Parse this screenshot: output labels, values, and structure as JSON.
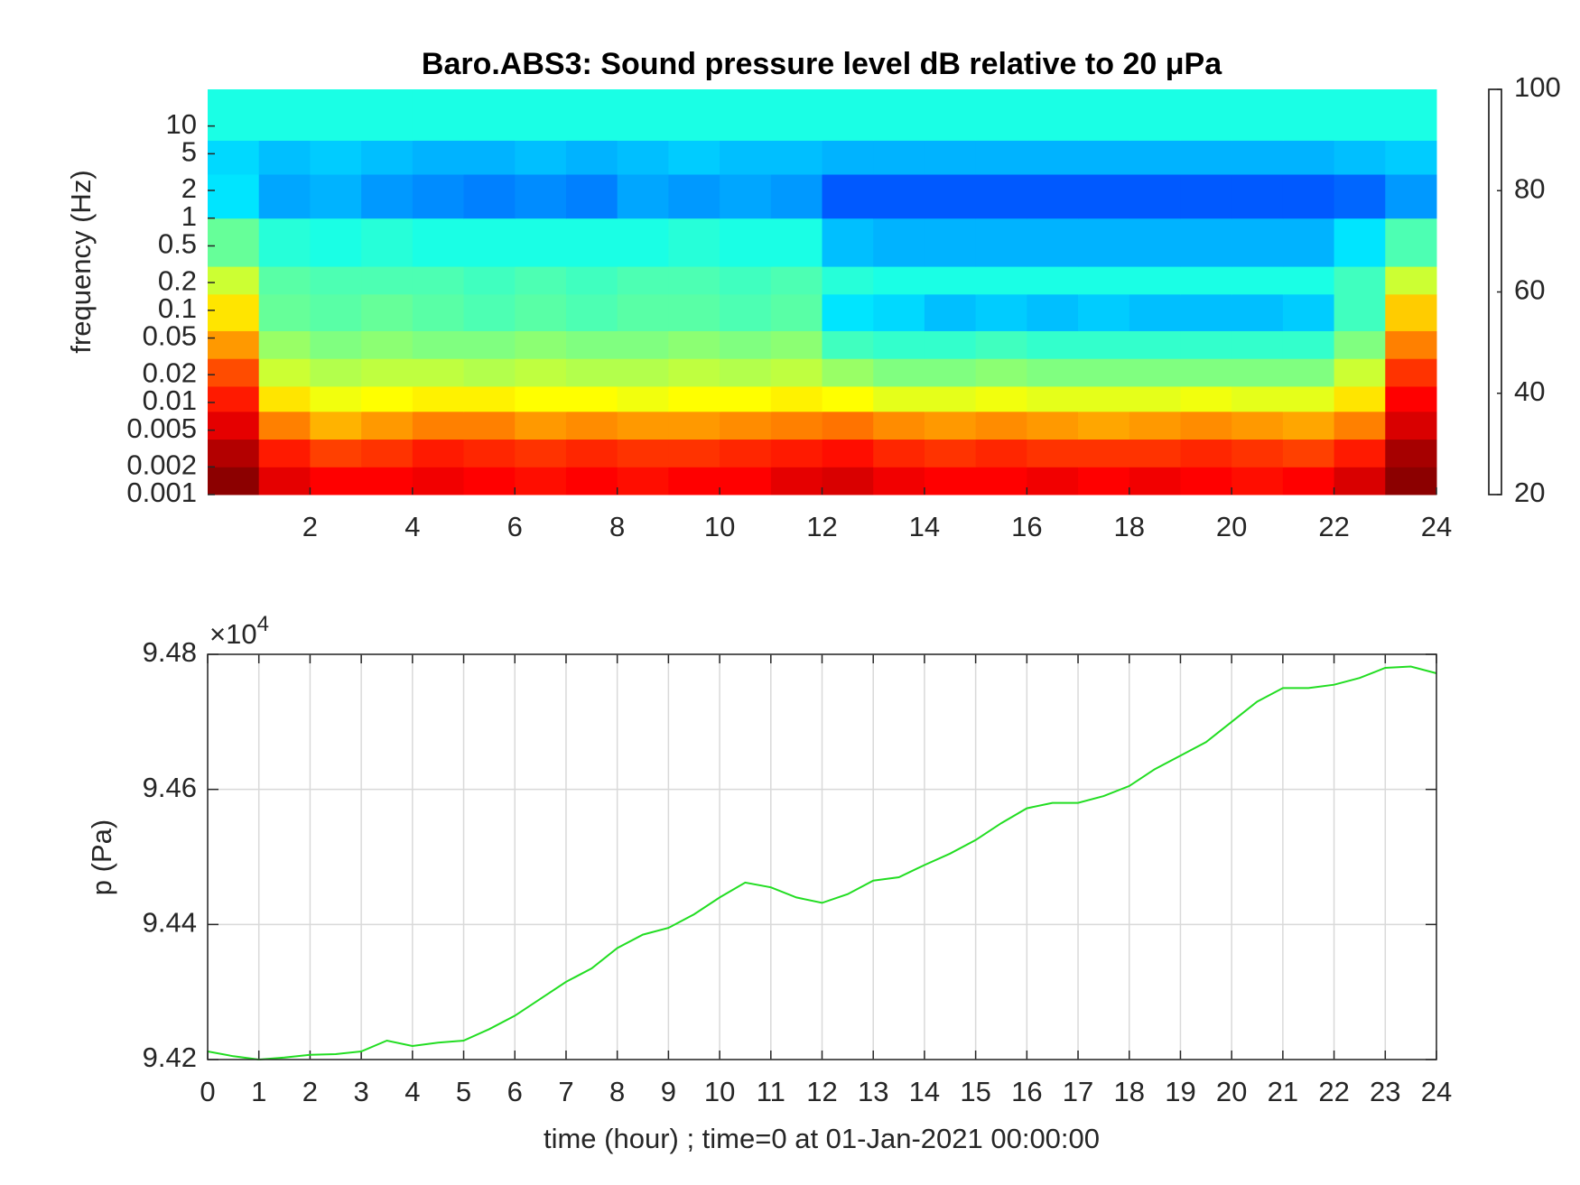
{
  "chart_data": [
    {
      "type": "heatmap",
      "title": "Baro.ABS3: Sound pressure level dB relative to 20 μPa",
      "y_label": "frequency (Hz)",
      "x_bins": [
        0,
        1,
        2,
        3,
        4,
        5,
        6,
        7,
        8,
        9,
        10,
        11,
        12,
        13,
        14,
        15,
        16,
        17,
        18,
        19,
        20,
        21,
        22,
        23,
        24
      ],
      "y_bins": [
        0.001,
        0.002,
        0.004,
        0.008,
        0.015,
        0.03,
        0.06,
        0.15,
        0.3,
        1,
        3,
        7,
        25
      ],
      "z": [
        [
          99,
          92,
          90,
          90,
          91,
          90,
          89,
          90,
          89,
          90,
          90,
          92,
          93,
          91,
          90,
          90,
          91,
          90,
          91,
          90,
          89,
          90,
          93,
          99
        ],
        [
          96,
          88,
          85,
          86,
          88,
          87,
          86,
          87,
          86,
          86,
          87,
          88,
          89,
          87,
          86,
          87,
          86,
          86,
          86,
          87,
          86,
          85,
          88,
          97
        ],
        [
          92,
          80,
          76,
          78,
          80,
          80,
          78,
          79,
          78,
          78,
          79,
          80,
          81,
          79,
          78,
          79,
          78,
          77,
          78,
          79,
          78,
          77,
          80,
          93
        ],
        [
          88,
          72,
          69,
          70,
          71,
          71,
          70,
          70,
          69,
          70,
          70,
          71,
          70,
          68,
          68,
          69,
          68,
          68,
          68,
          69,
          68,
          68,
          72,
          90
        ],
        [
          84,
          66,
          64,
          65,
          65,
          64,
          65,
          64,
          64,
          65,
          64,
          65,
          62,
          60,
          60,
          61,
          60,
          60,
          60,
          60,
          60,
          60,
          66,
          86
        ],
        [
          78,
          62,
          60,
          61,
          60,
          60,
          61,
          60,
          60,
          61,
          60,
          61,
          55,
          54,
          54,
          55,
          54,
          54,
          54,
          54,
          54,
          54,
          60,
          80
        ],
        [
          72,
          58,
          57,
          58,
          57,
          56,
          57,
          56,
          57,
          57,
          56,
          57,
          48,
          47,
          45,
          46,
          45,
          46,
          45,
          45,
          45,
          46,
          55,
          74
        ],
        [
          66,
          57,
          56,
          56,
          56,
          55,
          56,
          55,
          56,
          56,
          55,
          56,
          53,
          52,
          52,
          52,
          52,
          52,
          52,
          52,
          52,
          52,
          55,
          66
        ],
        [
          58,
          53,
          52,
          53,
          52,
          52,
          52,
          52,
          52,
          53,
          52,
          52,
          45,
          44,
          44,
          44,
          44,
          44,
          44,
          44,
          44,
          44,
          48,
          56
        ],
        [
          48,
          43,
          44,
          42,
          41,
          40,
          41,
          40,
          43,
          42,
          43,
          42,
          37,
          37,
          37,
          37,
          37,
          37,
          37,
          37,
          37,
          37,
          38,
          42
        ],
        [
          47,
          45,
          46,
          45,
          44,
          44,
          45,
          44,
          45,
          46,
          45,
          45,
          44,
          44,
          44,
          44,
          44,
          44,
          44,
          44,
          44,
          44,
          45,
          46
        ],
        [
          52,
          52,
          52,
          52,
          52,
          52,
          52,
          52,
          52,
          52,
          52,
          52,
          52,
          52,
          52,
          52,
          52,
          52,
          52,
          52,
          52,
          52,
          52,
          52
        ]
      ],
      "xlim": [
        0,
        24
      ],
      "xticks": [
        2,
        4,
        6,
        8,
        10,
        12,
        14,
        16,
        18,
        20,
        22,
        24
      ],
      "ylim": [
        0.001,
        25
      ],
      "ylog": true,
      "yticks": [
        0.001,
        0.002,
        0.005,
        0.01,
        0.02,
        0.05,
        0.1,
        0.2,
        0.5,
        1,
        2,
        5,
        10
      ],
      "colormap": "jet",
      "clim": [
        20,
        100
      ],
      "cticks": [
        20,
        40,
        60,
        80,
        100
      ]
    },
    {
      "type": "line",
      "x_label": "time (hour) ; time=0 at 01-Jan-2021 00:00:00",
      "y_label": "p (Pa)",
      "y_multiplier": "×10",
      "y_multiplier_exponent": "4",
      "x": [
        0,
        0.5,
        1,
        1.5,
        2,
        2.5,
        3,
        3.5,
        4,
        4.5,
        5,
        5.5,
        6,
        6.5,
        7,
        7.5,
        8,
        8.5,
        9,
        9.5,
        10,
        10.5,
        11,
        11.5,
        12,
        12.5,
        13,
        13.5,
        14,
        14.5,
        15,
        15.5,
        16,
        16.5,
        17,
        17.5,
        18,
        18.5,
        19,
        19.5,
        20,
        20.5,
        21,
        21.5,
        22,
        22.5,
        23,
        23.5,
        24
      ],
      "values": [
        94212,
        94205,
        94200,
        94203,
        94207,
        94208,
        94212,
        94228,
        94220,
        94225,
        94228,
        94245,
        94265,
        94290,
        94315,
        94335,
        94365,
        94385,
        94395,
        94415,
        94440,
        94462,
        94455,
        94440,
        94432,
        94445,
        94465,
        94470,
        94488,
        94505,
        94525,
        94550,
        94572,
        94580,
        94580,
        94590,
        94605,
        94630,
        94650,
        94670,
        94700,
        94730,
        94750,
        94750,
        94755,
        94765,
        94780,
        94782,
        94772
      ],
      "color": "#22dd22",
      "xlim": [
        0,
        24
      ],
      "xticks": [
        0,
        1,
        2,
        3,
        4,
        5,
        6,
        7,
        8,
        9,
        10,
        11,
        12,
        13,
        14,
        15,
        16,
        17,
        18,
        19,
        20,
        21,
        22,
        23,
        24
      ],
      "ylim": [
        94200,
        94800
      ],
      "yticks": [
        {
          "value": 94200,
          "label": "9.42"
        },
        {
          "value": 94400,
          "label": "9.44"
        },
        {
          "value": 94600,
          "label": "9.46"
        },
        {
          "value": 94800,
          "label": "9.48"
        }
      ],
      "grid": true
    }
  ]
}
